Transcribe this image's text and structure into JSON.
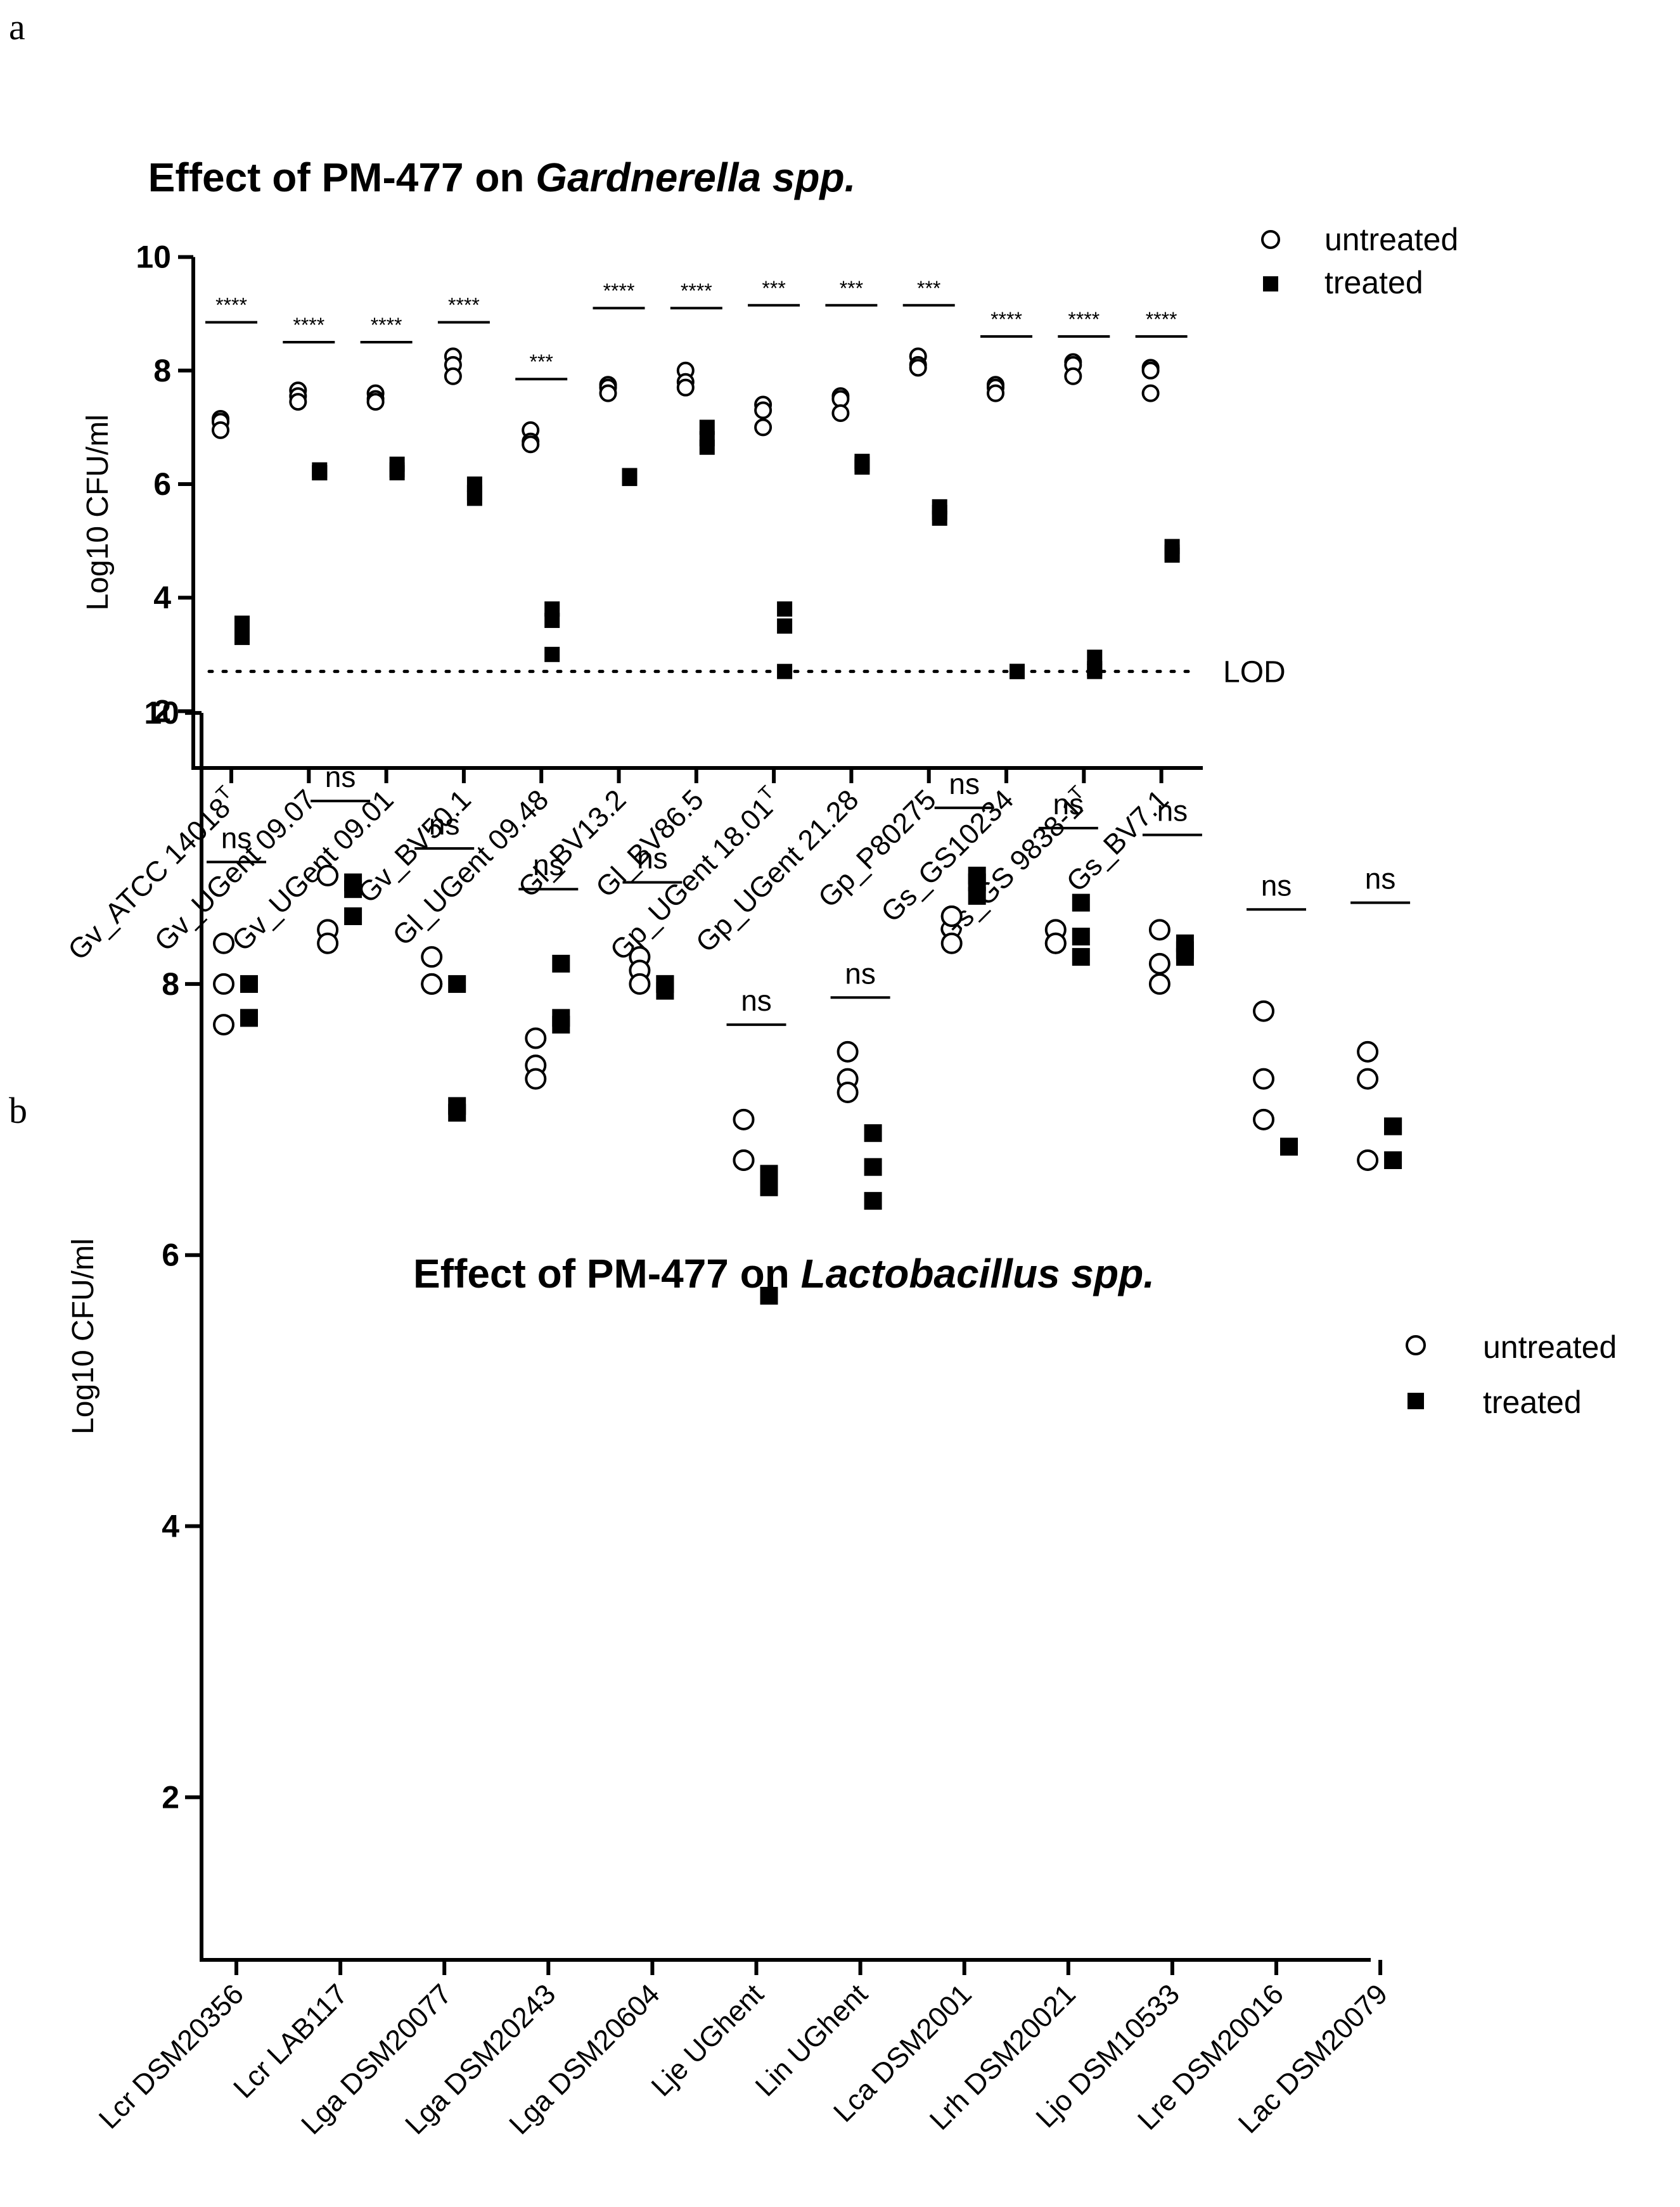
{
  "panel_labels": [
    "a",
    "b"
  ],
  "legend": {
    "untreated": "untreated",
    "treated": "treated"
  },
  "chart_data": [
    {
      "type": "scatter",
      "title": "Effect of PM-477 on ",
      "title_italic": "Gardnerella spp.",
      "ylabel": "Log10 CFU/ml",
      "xlabel": "",
      "ylim": [
        1,
        10
      ],
      "yticks": [
        2,
        4,
        6,
        8,
        10
      ],
      "lod": {
        "value": 2.7,
        "label": "LOD"
      },
      "categories": [
        {
          "name": "Gv_ATCC 14018",
          "sup": "T"
        },
        {
          "name": "Gv_UGent 09.07",
          "sup": ""
        },
        {
          "name": "Gv_UGent 09.01",
          "sup": ""
        },
        {
          "name": "Gv_BV50.1",
          "sup": ""
        },
        {
          "name": "Gl_UGent 09.48",
          "sup": ""
        },
        {
          "name": "Gl_BV13.2",
          "sup": ""
        },
        {
          "name": "Gl_BV86.5",
          "sup": ""
        },
        {
          "name": "Gp_UGent 18.01",
          "sup": "T"
        },
        {
          "name": "Gp_UGent 21.28",
          "sup": ""
        },
        {
          "name": "Gp_P80275",
          "sup": ""
        },
        {
          "name": "Gs_GS10234",
          "sup": ""
        },
        {
          "name": "Gs_GS 9838-1",
          "sup": "T"
        },
        {
          "name": "Gs_BV7.1",
          "sup": ""
        }
      ],
      "series": [
        {
          "name": "untreated",
          "values": [
            [
              7.15,
              7.1,
              6.95
            ],
            [
              7.65,
              7.55,
              7.45
            ],
            [
              7.6,
              7.5,
              7.45
            ],
            [
              8.25,
              8.1,
              7.9
            ],
            [
              6.95,
              6.75,
              6.7
            ],
            [
              7.75,
              7.7,
              7.6
            ],
            [
              8.0,
              7.8,
              7.7
            ],
            [
              7.4,
              7.3,
              7.0
            ],
            [
              7.55,
              7.5,
              7.25
            ],
            [
              8.25,
              8.1,
              8.05
            ],
            [
              7.75,
              7.7,
              7.6
            ],
            [
              8.15,
              8.1,
              7.9
            ],
            [
              8.05,
              8.0,
              7.6
            ]
          ]
        },
        {
          "name": "treated",
          "values": [
            [
              3.55,
              3.4,
              3.3
            ],
            [
              6.25,
              6.2,
              6.2
            ],
            [
              6.35,
              6.25,
              6.2
            ],
            [
              6.0,
              5.85,
              5.75
            ],
            [
              3.8,
              3.6,
              3.0
            ],
            [
              6.15,
              6.1,
              6.1
            ],
            [
              7.0,
              6.8,
              6.65
            ],
            [
              3.8,
              3.5,
              2.7
            ],
            [
              6.4,
              6.35,
              6.3
            ],
            [
              5.6,
              5.5,
              5.4
            ],
            [
              2.7,
              2.7,
              2.7
            ],
            [
              2.95,
              2.75,
              2.7
            ],
            [
              4.9,
              4.8,
              4.75
            ]
          ]
        }
      ],
      "significance": [
        {
          "label": "****",
          "y": 8.85
        },
        {
          "label": "****",
          "y": 8.5
        },
        {
          "label": "****",
          "y": 8.5
        },
        {
          "label": "****",
          "y": 8.85
        },
        {
          "label": "***",
          "y": 7.85
        },
        {
          "label": "****",
          "y": 9.1
        },
        {
          "label": "****",
          "y": 9.1
        },
        {
          "label": "***",
          "y": 9.15
        },
        {
          "label": "***",
          "y": 9.15
        },
        {
          "label": "***",
          "y": 9.15
        },
        {
          "label": "****",
          "y": 8.6
        },
        {
          "label": "****",
          "y": 8.6
        },
        {
          "label": "****",
          "y": 8.6
        }
      ]
    },
    {
      "type": "scatter",
      "title": "Effect of PM-477 on ",
      "title_italic": "Lactobacillus spp.",
      "ylabel": "Log10 CFU/ml",
      "xlabel": "",
      "ylim": [
        0.8,
        10
      ],
      "yticks": [
        2,
        4,
        6,
        8,
        10
      ],
      "categories": [
        {
          "name": "Lcr DSM20356",
          "sup": ""
        },
        {
          "name": "Lcr LAB117",
          "sup": ""
        },
        {
          "name": "Lga DSM20077",
          "sup": ""
        },
        {
          "name": "Lga DSM20243",
          "sup": ""
        },
        {
          "name": "Lga DSM20604",
          "sup": ""
        },
        {
          "name": "Lje UGhent",
          "sup": ""
        },
        {
          "name": "Lin UGhent",
          "sup": ""
        },
        {
          "name": "Lca DSM2001",
          "sup": ""
        },
        {
          "name": "Lrh DSM20021",
          "sup": ""
        },
        {
          "name": "Ljo DSM10533",
          "sup": ""
        },
        {
          "name": "Lre DSM20016",
          "sup": ""
        },
        {
          "name": "Lac DSM20079",
          "sup": ""
        }
      ],
      "series": [
        {
          "name": "untreated",
          "values": [
            [
              8.3,
              8.0,
              7.7
            ],
            [
              8.8,
              8.4,
              8.3
            ],
            [
              8.2,
              8.0,
              8.0
            ],
            [
              7.6,
              7.4,
              7.3
            ],
            [
              8.2,
              8.1,
              8.0
            ],
            [
              7.0,
              6.7,
              6.7
            ],
            [
              7.5,
              7.3,
              7.2
            ],
            [
              8.5,
              8.5,
              8.3
            ],
            [
              8.4,
              8.3,
              8.3
            ],
            [
              8.4,
              8.15,
              8.0
            ],
            [
              7.8,
              7.3,
              7.0
            ],
            [
              7.5,
              7.3,
              6.7
            ]
          ]
        },
        {
          "name": "treated",
          "values": [
            [
              8.0,
              7.75,
              7.75
            ],
            [
              8.75,
              8.7,
              8.5
            ],
            [
              8.0,
              7.1,
              7.05
            ],
            [
              8.15,
              7.75,
              7.7
            ],
            [
              8.0,
              8.0,
              7.95
            ],
            [
              6.6,
              6.5,
              5.7
            ],
            [
              6.9,
              6.65,
              6.4
            ],
            [
              8.8,
              8.75,
              8.65
            ],
            [
              8.6,
              8.35,
              8.2
            ],
            [
              8.3,
              8.25,
              8.2
            ],
            [
              6.8,
              6.8,
              6.8
            ],
            [
              6.95,
              6.95,
              6.7
            ]
          ]
        }
      ],
      "significance": [
        {
          "label": "ns",
          "y": 8.9
        },
        {
          "label": "ns",
          "y": 9.35
        },
        {
          "label": "ns",
          "y": 9.0
        },
        {
          "label": "ns",
          "y": 8.7
        },
        {
          "label": "ns",
          "y": 8.75
        },
        {
          "label": "ns",
          "y": 7.7
        },
        {
          "label": "ns",
          "y": 7.9
        },
        {
          "label": "ns",
          "y": 9.3
        },
        {
          "label": "ns",
          "y": 9.15
        },
        {
          "label": "ns",
          "y": 9.1
        },
        {
          "label": "ns",
          "y": 8.55
        },
        {
          "label": "ns",
          "y": 8.6
        }
      ]
    }
  ]
}
